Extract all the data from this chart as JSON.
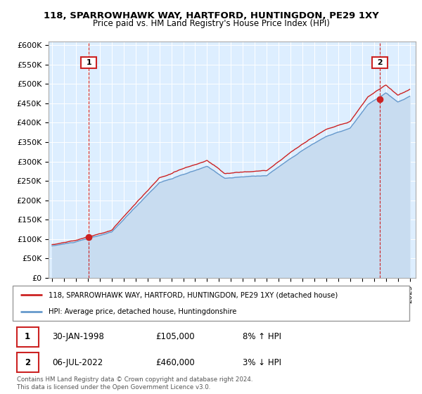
{
  "title_line1": "118, SPARROWHAWK WAY, HARTFORD, HUNTINGDON, PE29 1XY",
  "title_line2": "Price paid vs. HM Land Registry's House Price Index (HPI)",
  "ylabel_ticks": [
    "£0",
    "£50K",
    "£100K",
    "£150K",
    "£200K",
    "£250K",
    "£300K",
    "£350K",
    "£400K",
    "£450K",
    "£500K",
    "£550K",
    "£600K"
  ],
  "ytick_values": [
    0,
    50000,
    100000,
    150000,
    200000,
    250000,
    300000,
    350000,
    400000,
    450000,
    500000,
    550000,
    600000
  ],
  "xlim": [
    1994.7,
    2025.5
  ],
  "ylim": [
    0,
    610000
  ],
  "sale1_x": 1998.08,
  "sale1_y": 105000,
  "sale2_x": 2022.51,
  "sale2_y": 460000,
  "legend_line1": "118, SPARROWHAWK WAY, HARTFORD, HUNTINGDON, PE29 1XY (detached house)",
  "legend_line2": "HPI: Average price, detached house, Huntingdonshire",
  "table_row1_date": "30-JAN-1998",
  "table_row1_price": "£105,000",
  "table_row1_hpi": "8% ↑ HPI",
  "table_row2_date": "06-JUL-2022",
  "table_row2_price": "£460,000",
  "table_row2_hpi": "3% ↓ HPI",
  "footer": "Contains HM Land Registry data © Crown copyright and database right 2024.\nThis data is licensed under the Open Government Licence v3.0.",
  "red_color": "#cc2222",
  "blue_color": "#6699cc",
  "chart_bg": "#ddeeff",
  "fill_color": "#c8dcf0",
  "grid_color": "#ffffff",
  "bg_color": "#ffffff"
}
